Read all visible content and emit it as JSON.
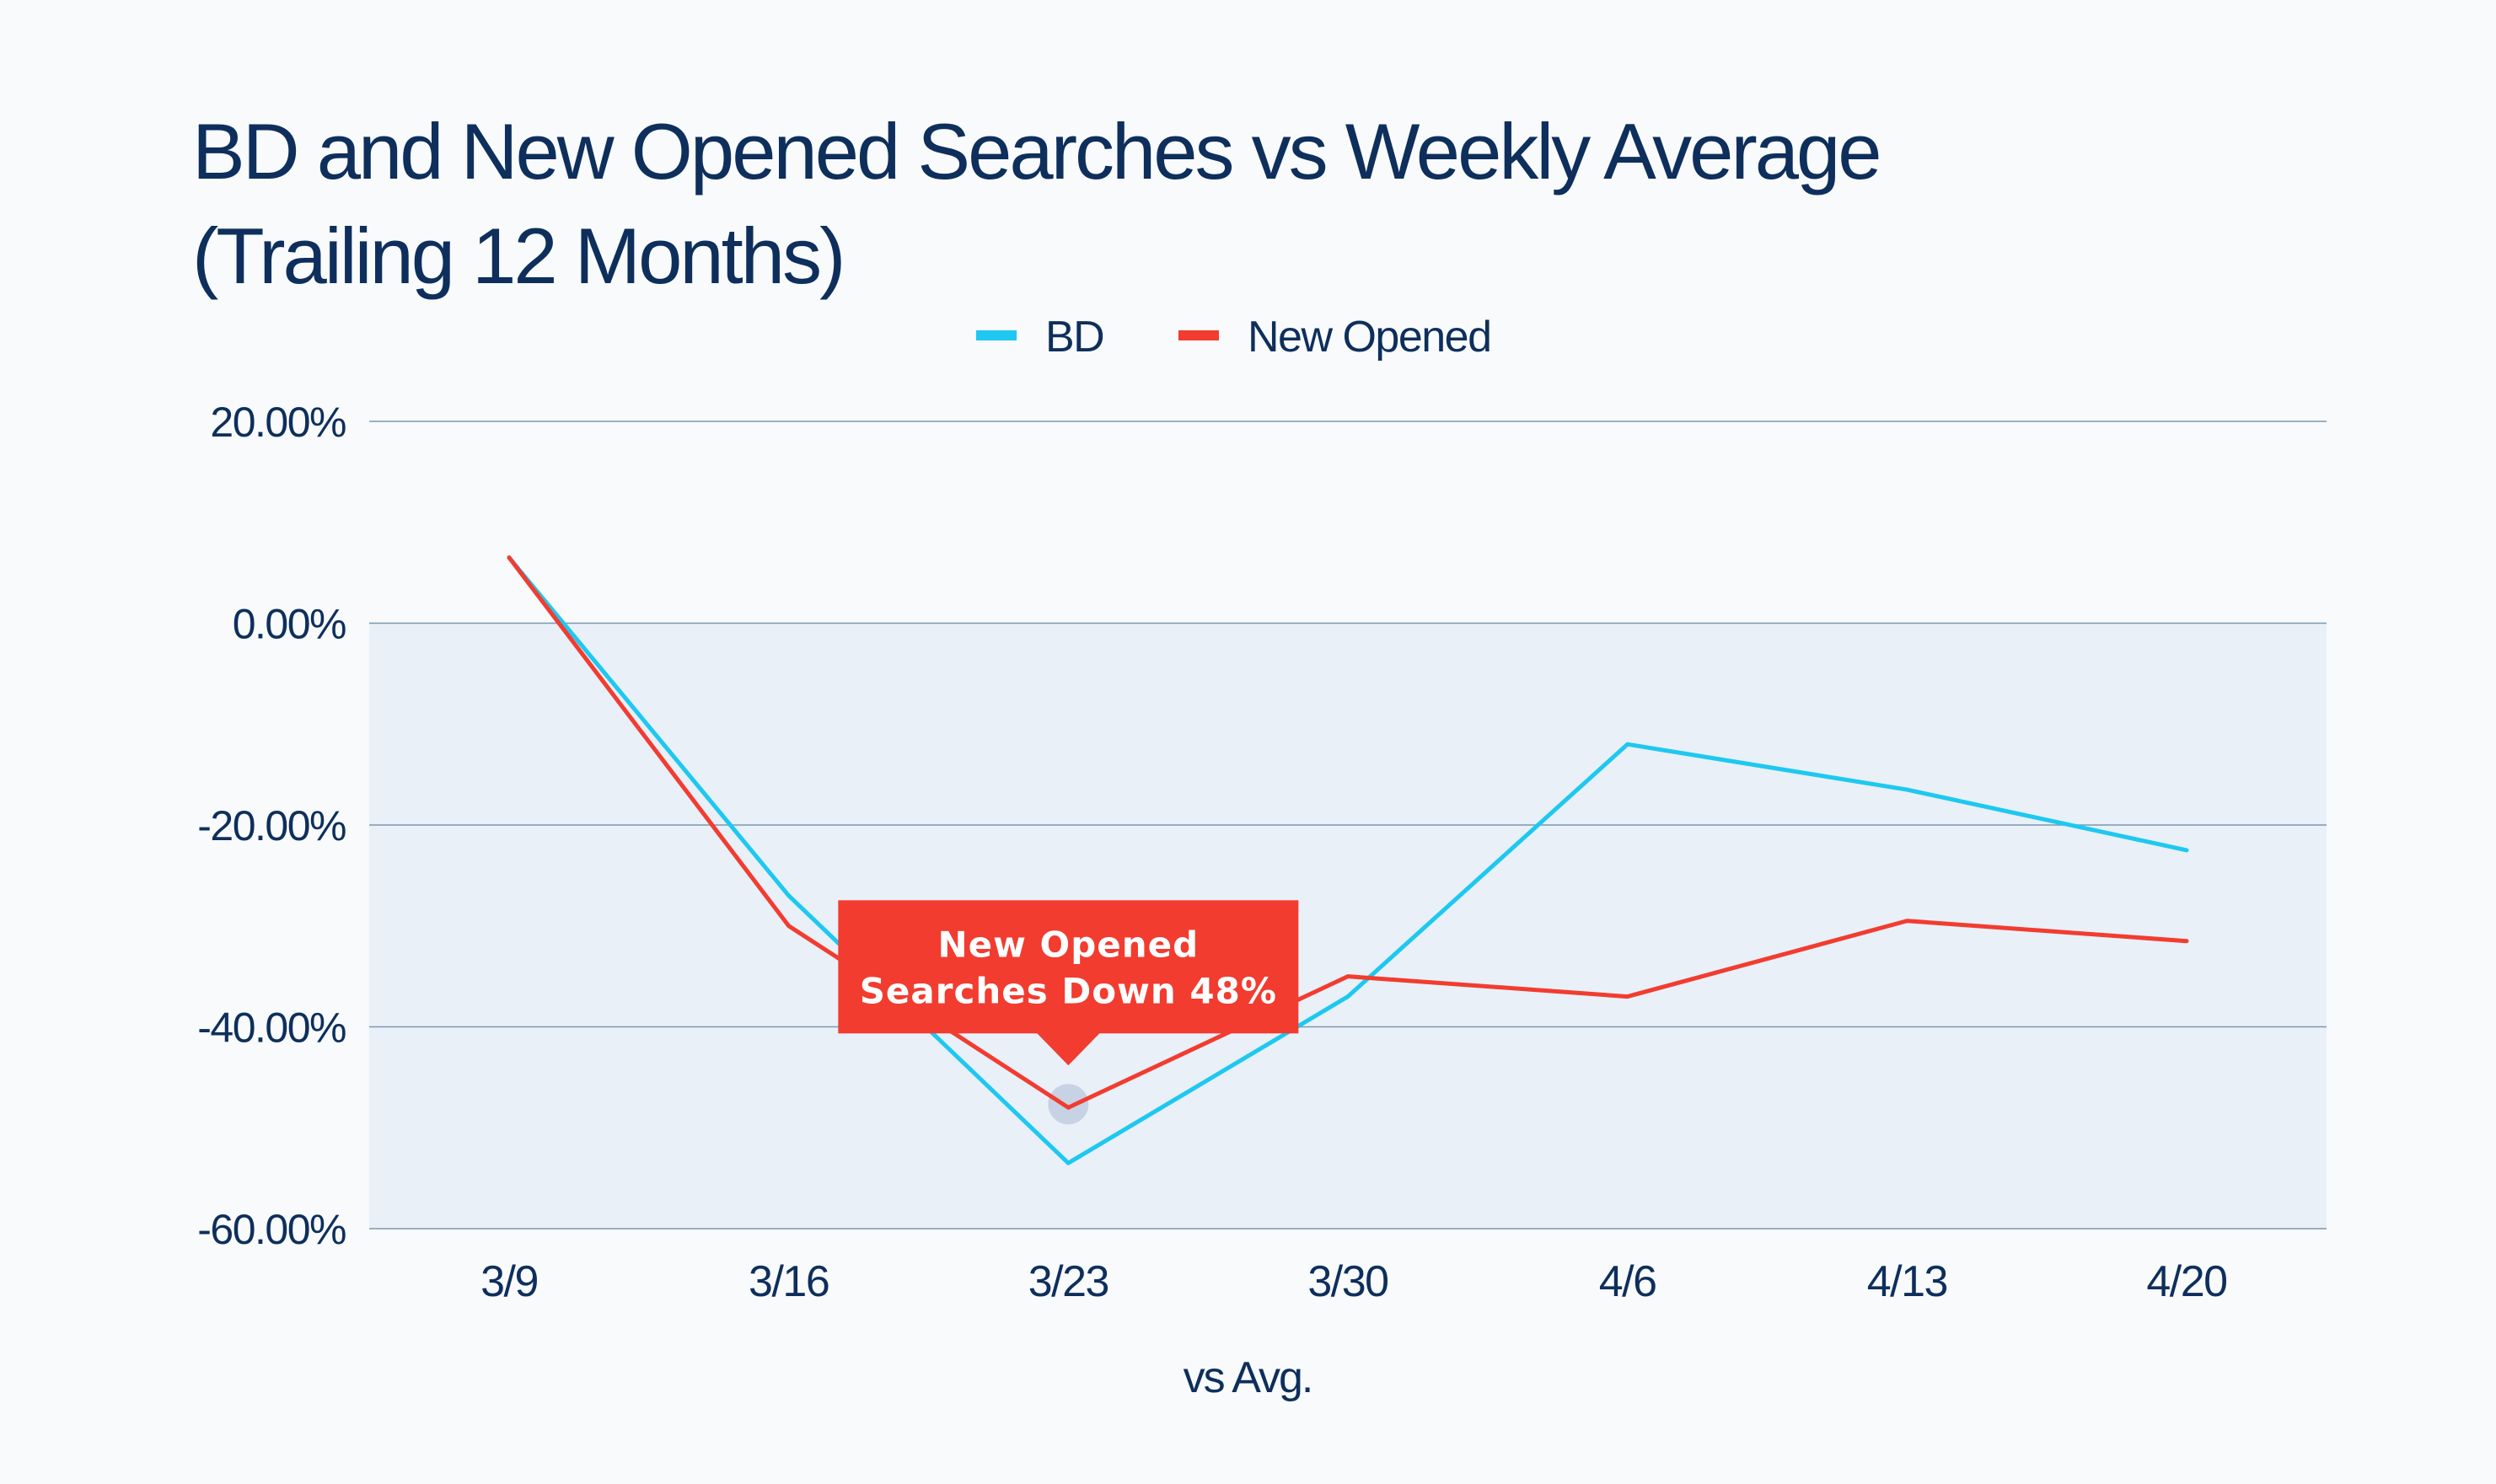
{
  "chart_data": {
    "type": "line",
    "title_line1": "BD and New Opened Searches vs Weekly Average",
    "title_line2": "(Trailing 12 Months)",
    "xlabel": "vs Avg.",
    "ylabel": "",
    "categories": [
      "3/9",
      "3/16",
      "3/23",
      "3/30",
      "4/6",
      "4/13",
      "4/20"
    ],
    "yticks": [
      "20.00%",
      "0.00%",
      "-20.00%",
      "-40.00%",
      "-60.00%"
    ],
    "ytick_values": [
      20,
      0,
      -20,
      -40,
      -60
    ],
    "ylim": [
      -60,
      20
    ],
    "grid": true,
    "legend_position": "top-center",
    "series": [
      {
        "name": "BD",
        "color": "#1ec8f0",
        "values": [
          6.5,
          -27,
          -53.5,
          -37,
          -12,
          -16.5,
          -22.5
        ]
      },
      {
        "name": "New Opened",
        "color": "#f23c30",
        "values": [
          6.5,
          -30,
          -48,
          -35,
          -37,
          -29.5,
          -31.5
        ]
      }
    ],
    "annotation": {
      "line1": "New Opened",
      "line2": "Searches Down 48%",
      "series": "New Opened",
      "category": "3/23",
      "color": "#f23c30"
    }
  }
}
